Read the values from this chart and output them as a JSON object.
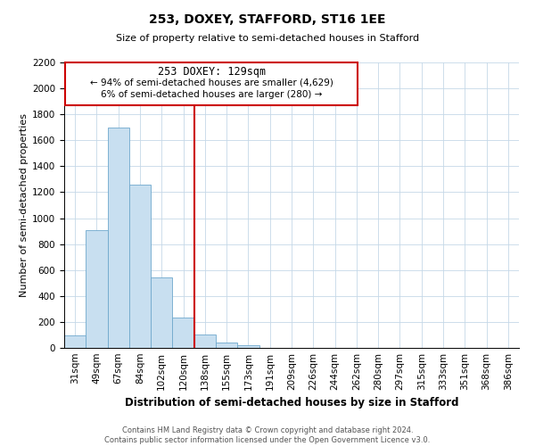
{
  "title": "253, DOXEY, STAFFORD, ST16 1EE",
  "subtitle": "Size of property relative to semi-detached houses in Stafford",
  "xlabel": "Distribution of semi-detached houses by size in Stafford",
  "ylabel": "Number of semi-detached properties",
  "footer_line1": "Contains HM Land Registry data © Crown copyright and database right 2024.",
  "footer_line2": "Contains public sector information licensed under the Open Government Licence v3.0.",
  "annotation_line1": "253 DOXEY: 129sqm",
  "annotation_line2": "← 94% of semi-detached houses are smaller (4,629)",
  "annotation_line3": "6% of semi-detached houses are larger (280) →",
  "bar_color": "#c8dff0",
  "bar_edge_color": "#6fa8cc",
  "vline_color": "#cc0000",
  "annotation_box_edge": "#cc0000",
  "ylim": [
    0,
    2200
  ],
  "yticks": [
    0,
    200,
    400,
    600,
    800,
    1000,
    1200,
    1400,
    1600,
    1800,
    2000,
    2200
  ],
  "bin_labels": [
    "31sqm",
    "49sqm",
    "67sqm",
    "84sqm",
    "102sqm",
    "120sqm",
    "138sqm",
    "155sqm",
    "173sqm",
    "191sqm",
    "209sqm",
    "226sqm",
    "244sqm",
    "262sqm",
    "280sqm",
    "297sqm",
    "315sqm",
    "333sqm",
    "351sqm",
    "368sqm",
    "386sqm"
  ],
  "bar_heights": [
    95,
    910,
    1700,
    1260,
    545,
    235,
    105,
    40,
    20,
    0,
    0,
    0,
    0,
    0,
    0,
    0,
    0,
    0,
    0,
    0,
    0
  ],
  "vline_x": 5.5,
  "n_bins": 21,
  "title_fontsize": 10,
  "subtitle_fontsize": 8,
  "ylabel_fontsize": 8,
  "xlabel_fontsize": 8.5,
  "tick_fontsize": 7.5,
  "footer_fontsize": 6,
  "annot_fontsize1": 8.5,
  "annot_fontsize2": 7.5
}
